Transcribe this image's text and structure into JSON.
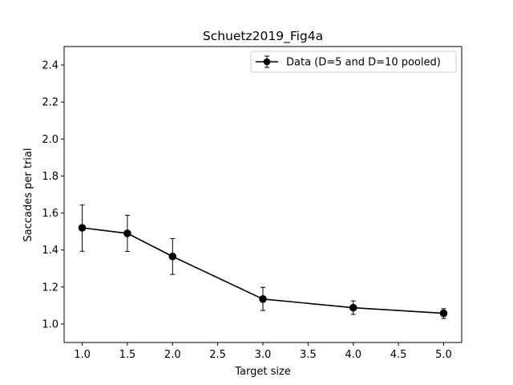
{
  "chart_data": {
    "type": "line",
    "title": "Schuetz2019_Fig4a",
    "xlabel": "Target size",
    "ylabel": "Saccades per trial",
    "xlim": [
      0.8,
      5.2
    ],
    "ylim": [
      0.9,
      2.5
    ],
    "xticks": [
      1.0,
      1.5,
      2.0,
      2.5,
      3.0,
      3.5,
      4.0,
      4.5,
      5.0
    ],
    "xtick_labels": [
      "1.0",
      "1.5",
      "2.0",
      "2.5",
      "3.0",
      "3.5",
      "4.0",
      "4.5",
      "5.0"
    ],
    "yticks": [
      1.0,
      1.2,
      1.4,
      1.6,
      1.8,
      2.0,
      2.2,
      2.4
    ],
    "ytick_labels": [
      "1.0",
      "1.2",
      "1.4",
      "1.6",
      "1.8",
      "2.0",
      "2.2",
      "2.4"
    ],
    "grid": false,
    "legend_position": "top-right",
    "series": [
      {
        "name": "Data (D=5 and D=10 pooled)",
        "color": "#000000",
        "marker": "circle",
        "x": [
          1.0,
          1.5,
          2.0,
          3.0,
          4.0,
          5.0
        ],
        "y": [
          1.52,
          1.49,
          1.365,
          1.135,
          1.088,
          1.058
        ],
        "err_low": [
          1.393,
          1.392,
          1.268,
          1.073,
          1.052,
          1.03
        ],
        "err_high": [
          1.643,
          1.588,
          1.462,
          1.198,
          1.125,
          1.083
        ]
      }
    ]
  }
}
